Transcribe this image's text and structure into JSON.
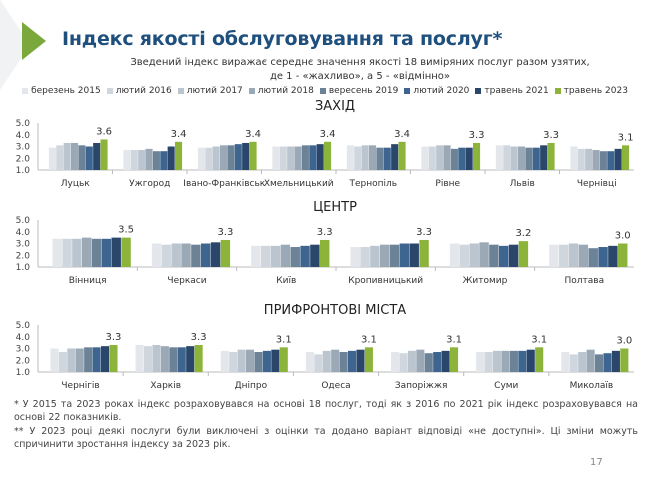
{
  "title": "Індекс якості обслуговування та послуг*",
  "subtitle_line1": "Зведений індекс виражає середнє значення якості 18 виміряних послуг разом узятих,",
  "subtitle_line2": "де 1 - «жахливо», а 5 - «відмінно»",
  "legend": [
    {
      "label": "березень 2015",
      "color": "#e3e7eb"
    },
    {
      "label": "лютий 2016",
      "color": "#d0d6dd"
    },
    {
      "label": "лютий 2017",
      "color": "#bbc5cf"
    },
    {
      "label": "лютий 2018",
      "color": "#9ba9b7"
    },
    {
      "label": "вересень 2019",
      "color": "#6c8297"
    },
    {
      "label": "лютий 2020",
      "color": "#3d6590"
    },
    {
      "label": "травень 2021",
      "color": "#2a476b"
    },
    {
      "label": "травень 2023",
      "color": "#8db43a"
    }
  ],
  "chart_data": [
    {
      "type": "bar",
      "title": "ЗАХІД",
      "ylim": [
        1.0,
        5.0
      ],
      "yticks": [
        "1.0",
        "2.0",
        "3.0",
        "4.0",
        "5.0"
      ],
      "categories": [
        "Луцьк",
        "Ужгород",
        "Івано-Франківськ",
        "Хмельницький",
        "Тернопіль",
        "Рівне",
        "Львів",
        "Чернівці"
      ],
      "series": [
        {
          "name": "березень 2015",
          "values": [
            2.9,
            2.7,
            2.9,
            3.0,
            3.1,
            3.0,
            3.1,
            3.0
          ]
        },
        {
          "name": "лютий 2016",
          "values": [
            3.1,
            2.7,
            2.9,
            3.0,
            3.0,
            3.0,
            3.1,
            2.8
          ]
        },
        {
          "name": "лютий 2017",
          "values": [
            3.3,
            2.7,
            3.0,
            3.0,
            3.1,
            3.1,
            3.0,
            2.8
          ]
        },
        {
          "name": "лютий 2018",
          "values": [
            3.3,
            2.8,
            3.1,
            3.0,
            3.1,
            3.1,
            3.0,
            2.7
          ]
        },
        {
          "name": "вересень 2019",
          "values": [
            3.1,
            2.6,
            3.1,
            3.1,
            2.9,
            2.8,
            2.9,
            2.6
          ]
        },
        {
          "name": "лютий 2020",
          "values": [
            3.0,
            2.6,
            3.2,
            3.1,
            2.9,
            2.9,
            2.9,
            2.6
          ]
        },
        {
          "name": "травень 2021",
          "values": [
            3.3,
            3.0,
            3.3,
            3.2,
            3.2,
            2.9,
            3.1,
            2.8
          ]
        },
        {
          "name": "травень 2023",
          "values": [
            3.6,
            3.4,
            3.4,
            3.4,
            3.4,
            3.3,
            3.3,
            3.1
          ]
        }
      ],
      "data_labels": [
        "3.6",
        "3.4",
        "3.4",
        "3.4",
        "3.4",
        "3.3",
        "3.3",
        "3.1"
      ]
    },
    {
      "type": "bar",
      "title": "ЦЕНТР",
      "ylim": [
        1.0,
        5.0
      ],
      "yticks": [
        "1.0",
        "2.0",
        "3.0",
        "4.0",
        "5.0"
      ],
      "categories": [
        "Вінниця",
        "Черкаси",
        "Київ",
        "Кропивницький",
        "Житомир",
        "Полтава"
      ],
      "series": [
        {
          "name": "березень 2015",
          "values": [
            3.4,
            3.0,
            2.8,
            2.7,
            3.0,
            2.9
          ]
        },
        {
          "name": "лютий 2016",
          "values": [
            3.4,
            2.9,
            2.8,
            2.7,
            2.9,
            2.9
          ]
        },
        {
          "name": "лютий 2017",
          "values": [
            3.4,
            3.0,
            2.8,
            2.8,
            3.0,
            3.0
          ]
        },
        {
          "name": "лютий 2018",
          "values": [
            3.5,
            3.0,
            2.9,
            2.9,
            3.1,
            2.9
          ]
        },
        {
          "name": "вересень 2019",
          "values": [
            3.4,
            2.9,
            2.7,
            2.9,
            2.9,
            2.6
          ]
        },
        {
          "name": "лютий 2020",
          "values": [
            3.4,
            3.0,
            2.8,
            3.0,
            2.8,
            2.7
          ]
        },
        {
          "name": "травень 2021",
          "values": [
            3.5,
            3.1,
            2.9,
            3.0,
            2.9,
            2.8
          ]
        },
        {
          "name": "травень 2023",
          "values": [
            3.5,
            3.3,
            3.3,
            3.3,
            3.2,
            3.0
          ]
        }
      ],
      "data_labels": [
        "3.5",
        "3.3",
        "3.3",
        "3.3",
        "3.2",
        "3.0"
      ]
    },
    {
      "type": "bar",
      "title": "ПРИФРОНТОВІ МІСТА",
      "ylim": [
        1.0,
        5.0
      ],
      "yticks": [
        "1.0",
        "2.0",
        "3.0",
        "4.0",
        "5.0"
      ],
      "categories": [
        "Чернігів",
        "Харків",
        "Дніпро",
        "Одеса",
        "Запоріжжя",
        "Суми",
        "Миколаїв"
      ],
      "series": [
        {
          "name": "березень 2015",
          "values": [
            3.0,
            3.3,
            2.8,
            2.7,
            2.7,
            2.7,
            2.7
          ]
        },
        {
          "name": "лютий 2016",
          "values": [
            2.7,
            3.2,
            2.7,
            2.5,
            2.6,
            2.7,
            2.5
          ]
        },
        {
          "name": "лютий 2017",
          "values": [
            3.0,
            3.3,
            2.9,
            2.8,
            2.8,
            2.8,
            2.7
          ]
        },
        {
          "name": "лютий 2018",
          "values": [
            3.0,
            3.2,
            2.9,
            2.9,
            2.9,
            2.8,
            2.9
          ]
        },
        {
          "name": "вересень 2019",
          "values": [
            3.1,
            3.1,
            2.7,
            2.7,
            2.6,
            2.8,
            2.5
          ]
        },
        {
          "name": "лютий 2020",
          "values": [
            3.1,
            3.1,
            2.8,
            2.8,
            2.7,
            2.8,
            2.6
          ]
        },
        {
          "name": "травень 2021",
          "values": [
            3.2,
            3.2,
            2.9,
            2.9,
            2.8,
            2.9,
            2.8
          ]
        },
        {
          "name": "травень 2023",
          "values": [
            3.3,
            3.3,
            3.1,
            3.1,
            3.1,
            3.1,
            3.0
          ]
        }
      ],
      "data_labels": [
        "3.3",
        "3.3",
        "3.1",
        "3.1",
        "3.1",
        "3.1",
        "3.0"
      ]
    }
  ],
  "footnote1": "* У 2015 та 2023 роках індекс розраховувався на основі 18 послуг, тоді як з 2016 по 2021 рік індекс розраховувався на основі 22 показників.",
  "footnote2": "** У 2023 році деякі послуги були виключені з оцінки та додано варіант відповіді «не доступні». Ці зміни можуть спричинити зростання індексу за 2023 рік.",
  "page_number": "17"
}
